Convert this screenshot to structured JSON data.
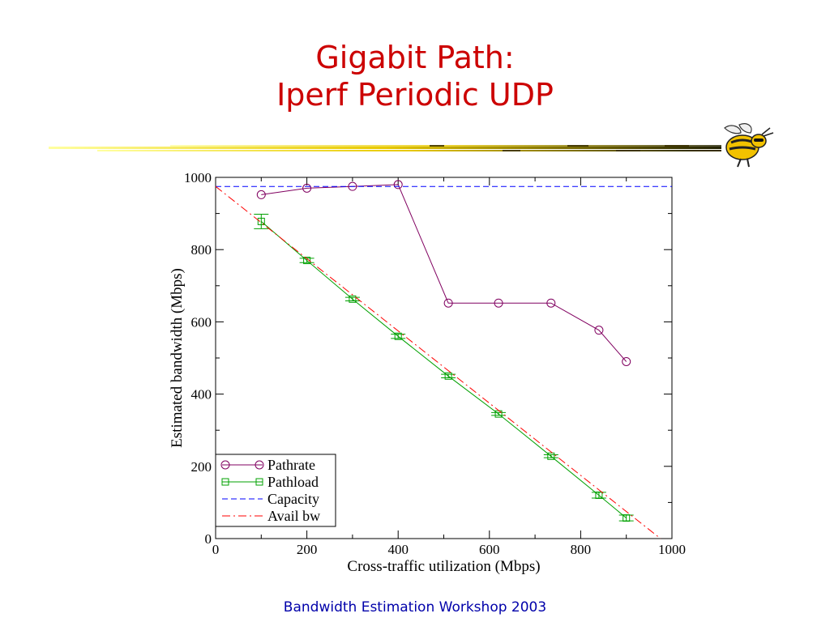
{
  "slide": {
    "title_line1": "Gigabit Path:",
    "title_line2": "Iperf Periodic UDP",
    "footer": "Bandwidth Estimation Workshop 2003",
    "title_color": "#cc0000",
    "footer_color": "#0000aa",
    "mascot_icon": "yellow-jacket-mascot"
  },
  "chart_data": {
    "type": "line",
    "title": "",
    "xlabel": "Cross-traffic utilization (Mbps)",
    "ylabel": "Estimated bandwidth (Mbps)",
    "xlim": [
      0,
      1000
    ],
    "ylim": [
      0,
      1000
    ],
    "xticks": [
      "0",
      "200",
      "400",
      "600",
      "800",
      "1000"
    ],
    "yticks": [
      "0",
      "200",
      "400",
      "600",
      "800",
      "1000"
    ],
    "grid": false,
    "legend_position": "bottom-left",
    "series": [
      {
        "name": "Pathrate",
        "color": "#800060",
        "marker": "circle",
        "points": [
          [
            100,
            952
          ],
          [
            200,
            970
          ],
          [
            300,
            975
          ],
          [
            400,
            980
          ],
          [
            510,
            652
          ],
          [
            620,
            652
          ],
          [
            735,
            652
          ],
          [
            840,
            577
          ],
          [
            900,
            490
          ]
        ]
      },
      {
        "name": "Pathload",
        "color": "#00a000",
        "marker": "square",
        "points": [
          [
            100,
            878,
            20
          ],
          [
            200,
            770,
            6
          ],
          [
            300,
            663,
            5
          ],
          [
            400,
            560,
            6
          ],
          [
            510,
            450,
            5
          ],
          [
            620,
            345,
            4
          ],
          [
            735,
            228,
            4
          ],
          [
            840,
            120,
            8
          ],
          [
            900,
            57,
            8
          ]
        ]
      },
      {
        "name": "Capacity",
        "color": "#0000ff",
        "style": "dashed",
        "points": [
          [
            0,
            975
          ],
          [
            1000,
            975
          ]
        ]
      },
      {
        "name": "Avail bw",
        "color": "#ff0000",
        "style": "dash-dot",
        "points": [
          [
            0,
            975
          ],
          [
            975,
            0
          ]
        ]
      }
    ]
  }
}
